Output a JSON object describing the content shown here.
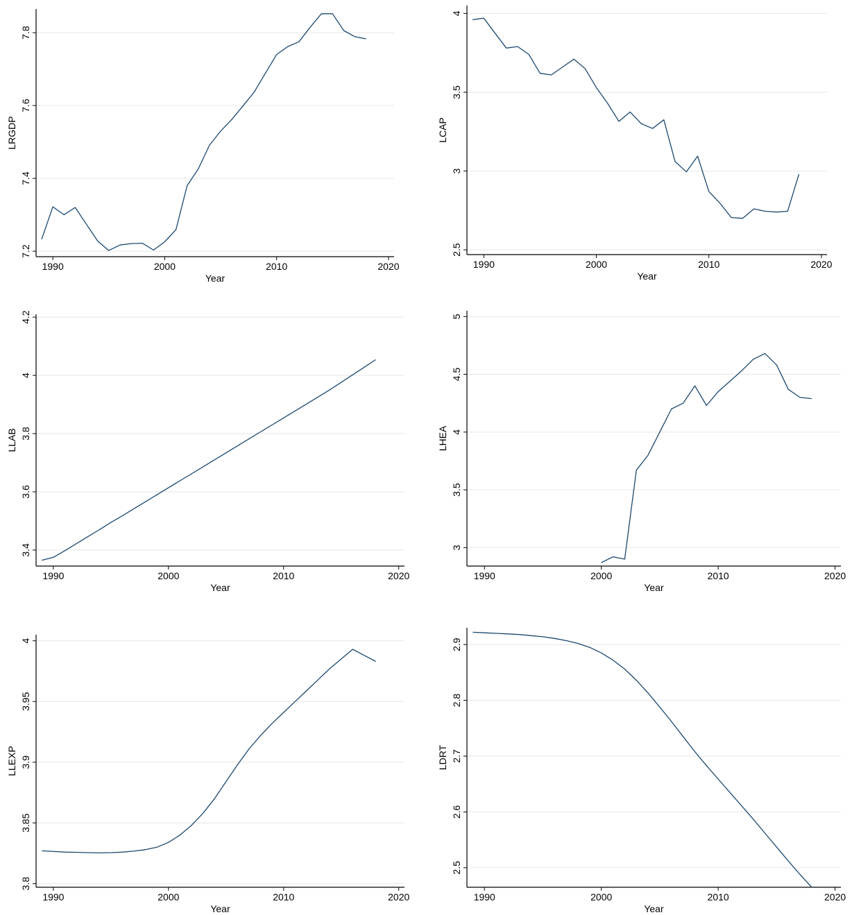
{
  "style": {
    "line_color": "#1a476f",
    "grid_color": "#e6e6e6",
    "axis_color": "#000000"
  },
  "chart_data": [
    {
      "type": "line",
      "xlabel": "Year",
      "ylabel": "LRGDP",
      "xlim": [
        1988.5,
        2020.5
      ],
      "ylim": [
        7.185,
        7.865
      ],
      "xticks": [
        1990,
        2000,
        2010,
        2020
      ],
      "yticks": [
        7.2,
        7.4,
        7.6,
        7.8
      ],
      "ytick_labels": [
        "7.2",
        "7.4",
        "7.6",
        "7.8"
      ],
      "grid": true,
      "legend": "none",
      "x": [
        1989,
        1990,
        1991,
        1992,
        1993,
        1994,
        1995,
        1996,
        1997,
        1998,
        1999,
        2000,
        2001,
        2002,
        2003,
        2004,
        2005,
        2006,
        2007,
        2008,
        2009,
        2010,
        2011,
        2012,
        2013,
        2014,
        2015,
        2016,
        2017,
        2018
      ],
      "y": [
        7.233,
        7.322,
        7.3,
        7.32,
        7.274,
        7.228,
        7.202,
        7.217,
        7.221,
        7.222,
        7.203,
        7.226,
        7.259,
        7.38,
        7.426,
        7.491,
        7.53,
        7.562,
        7.599,
        7.637,
        7.689,
        7.74,
        7.762,
        7.775,
        7.815,
        7.852,
        7.852,
        7.806,
        7.789,
        7.783
      ]
    },
    {
      "type": "line",
      "xlabel": "Year",
      "ylabel": "LCAP",
      "xlim": [
        1988.5,
        2020.5
      ],
      "ylim": [
        2.47,
        4.05
      ],
      "xticks": [
        1990,
        2000,
        2010,
        2020
      ],
      "yticks": [
        2.5,
        3,
        3.5,
        4
      ],
      "ytick_labels": [
        "2.5",
        "3",
        "3.5",
        "4"
      ],
      "grid": true,
      "legend": "none",
      "x": [
        1989,
        1990,
        1991,
        1992,
        1993,
        1994,
        1995,
        1996,
        1997,
        1998,
        1999,
        2000,
        2001,
        2002,
        2003,
        2004,
        2005,
        2006,
        2007,
        2008,
        2009,
        2010,
        2011,
        2012,
        2013,
        2014,
        2015,
        2016,
        2017,
        2018
      ],
      "y": [
        3.96,
        3.97,
        3.875,
        3.78,
        3.79,
        3.74,
        3.62,
        3.61,
        3.66,
        3.71,
        3.65,
        3.53,
        3.43,
        3.315,
        3.375,
        3.3,
        3.27,
        3.325,
        3.06,
        2.995,
        3.095,
        2.87,
        2.795,
        2.705,
        2.7,
        2.76,
        2.745,
        2.74,
        2.745,
        2.98
      ]
    },
    {
      "type": "line",
      "xlabel": "Year",
      "ylabel": "LLAB",
      "xlim": [
        1988.5,
        2020.5
      ],
      "ylim": [
        3.345,
        4.21
      ],
      "xticks": [
        1990,
        2000,
        2010,
        2020
      ],
      "yticks": [
        3.4,
        3.6,
        3.8,
        4,
        4.2
      ],
      "ytick_labels": [
        "3.4",
        "3.6",
        "3.8",
        "4",
        "4.2"
      ],
      "grid": true,
      "legend": "none",
      "x": [
        1989,
        1990,
        1991,
        1992,
        1993,
        1994,
        1995,
        1996,
        1997,
        1998,
        1999,
        2000,
        2001,
        2002,
        2003,
        2004,
        2005,
        2006,
        2007,
        2008,
        2009,
        2010,
        2011,
        2012,
        2013,
        2014,
        2015,
        2016,
        2017,
        2018
      ],
      "y": [
        3.365,
        3.375,
        3.398,
        3.422,
        3.446,
        3.47,
        3.495,
        3.518,
        3.542,
        3.566,
        3.59,
        3.614,
        3.638,
        3.662,
        3.686,
        3.71,
        3.734,
        3.758,
        3.782,
        3.806,
        3.83,
        3.854,
        3.878,
        3.902,
        3.926,
        3.95,
        3.976,
        4.002,
        4.028,
        4.054
      ]
    },
    {
      "type": "line",
      "xlabel": "Year",
      "ylabel": "LHEA",
      "xlim": [
        1988.5,
        2020.5
      ],
      "ylim": [
        2.84,
        5.05
      ],
      "xticks": [
        1990,
        2000,
        2010,
        2020
      ],
      "yticks": [
        3,
        3.5,
        4,
        4.5,
        5
      ],
      "ytick_labels": [
        "3",
        "3.5",
        "4",
        "4.5",
        "5"
      ],
      "grid": true,
      "legend": "none",
      "x": [
        2000,
        2001,
        2002,
        2003,
        2004,
        2005,
        2006,
        2007,
        2008,
        2009,
        2010,
        2011,
        2012,
        2013,
        2014,
        2015,
        2016,
        2017,
        2018
      ],
      "y": [
        2.87,
        2.92,
        2.9,
        3.67,
        3.8,
        4.0,
        4.2,
        4.25,
        4.4,
        4.23,
        4.35,
        4.44,
        4.53,
        4.63,
        4.68,
        4.58,
        4.37,
        4.3,
        4.29
      ]
    },
    {
      "type": "line",
      "xlabel": "Year",
      "ylabel": "LLEXP",
      "xlim": [
        1988.5,
        2020.5
      ],
      "ylim": [
        3.797,
        4.005
      ],
      "xticks": [
        1990,
        2000,
        2010,
        2020
      ],
      "yticks": [
        3.8,
        3.85,
        3.9,
        3.95,
        4
      ],
      "ytick_labels": [
        "3.8",
        "3.85",
        "3.9",
        "3.95",
        "4"
      ],
      "grid": true,
      "legend": "none",
      "x": [
        1989,
        1990,
        1991,
        1992,
        1993,
        1994,
        1995,
        1996,
        1997,
        1998,
        1999,
        2000,
        2001,
        2002,
        2003,
        2004,
        2005,
        2006,
        2007,
        2008,
        2009,
        2010,
        2011,
        2012,
        2013,
        2014,
        2015,
        2016,
        2017,
        2018
      ],
      "y": [
        3.827,
        3.8265,
        3.826,
        3.8258,
        3.8255,
        3.8253,
        3.8255,
        3.826,
        3.8268,
        3.828,
        3.83,
        3.834,
        3.84,
        3.848,
        3.858,
        3.87,
        3.884,
        3.898,
        3.911,
        3.922,
        3.932,
        3.941,
        3.95,
        3.959,
        3.968,
        3.977,
        3.985,
        3.993,
        3.988,
        3.983
      ]
    },
    {
      "type": "line",
      "xlabel": "Year",
      "ylabel": "LDRT",
      "xlim": [
        1988.5,
        2020.5
      ],
      "ylim": [
        2.465,
        2.93
      ],
      "xticks": [
        1990,
        2000,
        2010,
        2020
      ],
      "yticks": [
        2.5,
        2.6,
        2.7,
        2.8,
        2.9
      ],
      "ytick_labels": [
        "2.5",
        "2.6",
        "2.7",
        "2.8",
        "2.9"
      ],
      "grid": true,
      "legend": "none",
      "x": [
        1989,
        1990,
        1991,
        1992,
        1993,
        1994,
        1995,
        1996,
        1997,
        1998,
        1999,
        2000,
        2001,
        2002,
        2003,
        2004,
        2005,
        2006,
        2007,
        2008,
        2009,
        2010,
        2011,
        2012,
        2013,
        2014,
        2015,
        2016,
        2017,
        2018
      ],
      "y": [
        2.922,
        2.921,
        2.92,
        2.919,
        2.918,
        2.916,
        2.914,
        2.911,
        2.907,
        2.902,
        2.895,
        2.885,
        2.872,
        2.856,
        2.836,
        2.813,
        2.788,
        2.762,
        2.735,
        2.708,
        2.683,
        2.659,
        2.635,
        2.611,
        2.587,
        2.562,
        2.537,
        2.512,
        2.488,
        2.465
      ]
    }
  ]
}
